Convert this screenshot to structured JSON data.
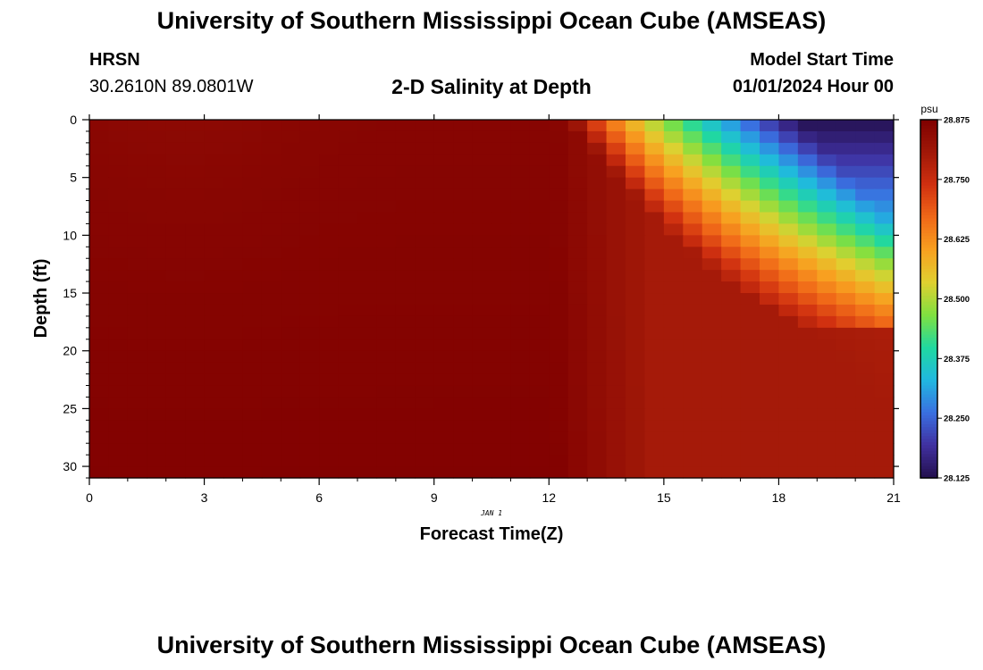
{
  "header": {
    "title": "University of Southern Mississippi Ocean Cube (AMSEAS)",
    "station": "HRSN",
    "coords": "30.2610N  89.0801W",
    "subtitle": "2-D Salinity at Depth",
    "start_label": "Model Start Time",
    "start_value": "01/01/2024 Hour 00"
  },
  "footer": {
    "title": "University of Southern Mississippi Ocean Cube (AMSEAS)"
  },
  "chart_data": {
    "type": "heatmap",
    "title": "2-D Salinity at Depth",
    "xlabel": "Forecast Time(Z)",
    "ylabel": "Depth (ft)",
    "date_annotation": "JAN 1",
    "x_range": [
      0,
      21
    ],
    "y_range": [
      0,
      31
    ],
    "y_inverted": true,
    "x_ticks": [
      0,
      3,
      6,
      9,
      12,
      15,
      18,
      21
    ],
    "y_ticks": [
      0,
      5,
      10,
      15,
      20,
      25,
      30
    ],
    "colorbar": {
      "unit": "psu",
      "min": 28.125,
      "max": 28.875,
      "ticks": [
        "28.875",
        "28.750",
        "28.625",
        "28.500",
        "28.375",
        "28.250",
        "28.125"
      ],
      "colors": [
        "#23104d",
        "#4030a0",
        "#3a6fe0",
        "#20b8e0",
        "#20d8a0",
        "#80e040",
        "#e0d030",
        "#f8a020",
        "#f06818",
        "#d03010",
        "#a01808",
        "#800000"
      ]
    },
    "front_x": [
      12.5,
      13.8,
      15.2,
      17.0,
      19.5,
      20.9
    ],
    "front_y": [
      0,
      5,
      10,
      15,
      20,
      25
    ],
    "field_summary": {
      "left_region_value": 28.86,
      "deep_right_value": 28.8,
      "surface_min_value": 28.13,
      "mid_depth_right_value": 28.55
    }
  }
}
